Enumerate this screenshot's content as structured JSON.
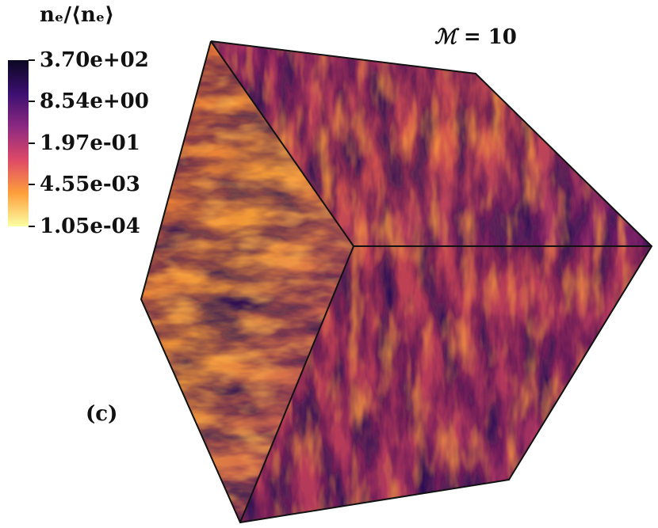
{
  "colorbar": {
    "title": "nₑ/⟨nₑ⟩",
    "ticks": [
      "3.70e+02",
      "8.54e+00",
      "1.97e-01",
      "4.55e-03",
      "1.05e-04"
    ],
    "colormap": "inferno",
    "stops": [
      "#0b0722",
      "#3b0f70",
      "#8c2981",
      "#de4968",
      "#fe9f3b",
      "#fcffa4"
    ]
  },
  "annotation": {
    "mach_symbol": "ℳ",
    "mach_text": " = 10",
    "panel_label": "(c)"
  },
  "cube": {
    "edge_color": "#111111",
    "face_colors": {
      "base": "#b8345a",
      "dark": "#3a1060",
      "bright": "#f8a040"
    }
  }
}
